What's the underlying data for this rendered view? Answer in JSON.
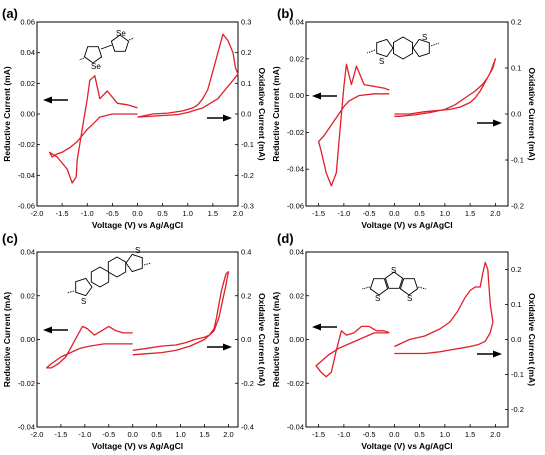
{
  "curve_color": "#e0202a",
  "panels": [
    {
      "id": "a",
      "label": "(a)",
      "xlabel": "Voltage (V) vs Ag/AgCl",
      "ylabel_left": "Reductive Current (mA)",
      "ylabel_right": "Oxidative Current (mA)",
      "molecule_atoms": [
        "Se",
        "Se"
      ],
      "chart_data": {
        "type": "line",
        "xlim": [
          -2.0,
          2.0
        ],
        "left_ylim": [
          -0.06,
          0.06
        ],
        "right_ylim": [
          -0.3,
          0.3
        ],
        "x_ticks": [
          "-2.0",
          "-1.5",
          "-1.0",
          "-0.5",
          "0.0",
          "0.5",
          "1.0",
          "1.5",
          "2.0"
        ],
        "left_ticks": [
          "-0.06",
          "-0.04",
          "-0.02",
          "0.00",
          "0.02",
          "0.04",
          "0.06"
        ],
        "right_ticks": [
          "-0.3",
          "-0.2",
          "-0.1",
          "0.0",
          "0.1",
          "0.2",
          "0.3"
        ],
        "reductive_x": [
          0.0,
          -0.2,
          -0.5,
          -0.75,
          -0.9,
          -1.0,
          -1.1,
          -1.2,
          -1.35,
          -1.5,
          -1.6,
          -1.7,
          -1.75,
          -1.6,
          -1.4,
          -1.3,
          -1.22,
          -1.2,
          -1.1,
          -1.0,
          -0.95,
          -0.85,
          -0.75,
          -0.6,
          -0.4,
          -0.2,
          0.0
        ],
        "reductive_y": [
          0.0,
          0.0,
          0.0,
          -0.002,
          -0.007,
          -0.01,
          -0.014,
          -0.018,
          -0.022,
          -0.025,
          -0.026,
          -0.028,
          -0.025,
          -0.028,
          -0.036,
          -0.045,
          -0.041,
          -0.03,
          -0.01,
          0.01,
          0.022,
          0.025,
          0.01,
          0.015,
          0.007,
          0.006,
          0.004
        ],
        "oxidative_x": [
          0.0,
          0.3,
          0.6,
          0.9,
          1.1,
          1.2,
          1.3,
          1.4,
          1.5,
          1.6,
          1.7,
          1.8,
          1.9,
          1.95,
          2.0,
          1.95,
          1.9,
          1.8,
          1.7,
          1.6,
          1.5,
          1.4,
          1.3,
          1.2,
          1.1,
          1.0,
          0.8,
          0.5,
          0.2,
          0.0
        ],
        "oxidative_y": [
          -0.01,
          0.0,
          0.003,
          0.01,
          0.02,
          0.03,
          0.05,
          0.08,
          0.14,
          0.2,
          0.26,
          0.24,
          0.2,
          0.15,
          0.13,
          0.12,
          0.11,
          0.09,
          0.07,
          0.05,
          0.04,
          0.03,
          0.02,
          0.015,
          0.01,
          0.005,
          -0.002,
          -0.005,
          -0.008,
          -0.01
        ]
      }
    },
    {
      "id": "b",
      "label": "(b)",
      "xlabel": "Voltage (V) vs Ag/AgCl",
      "ylabel_left": "Reductive Current (mA)",
      "ylabel_right": "Oxidative Current (mA)",
      "molecule_atoms": [
        "S",
        "S"
      ],
      "chart_data": {
        "type": "line",
        "xlim": [
          -1.75,
          2.25
        ],
        "left_ylim": [
          -0.06,
          0.04
        ],
        "right_ylim": [
          -0.2,
          0.2
        ],
        "x_ticks": [
          "-1.5",
          "-1.0",
          "-0.5",
          "0.0",
          "0.5",
          "1.0",
          "1.5",
          "2.0"
        ],
        "left_ticks": [
          "-0.06",
          "-0.04",
          "-0.02",
          "0.00",
          "0.02",
          "0.04"
        ],
        "right_ticks": [
          "-0.2",
          "-0.1",
          "0.0",
          "0.1",
          "0.2"
        ],
        "reductive_x": [
          -0.1,
          -0.4,
          -0.7,
          -0.9,
          -1.0,
          -1.1,
          -1.25,
          -1.4,
          -1.5,
          -1.45,
          -1.35,
          -1.25,
          -1.15,
          -1.08,
          -1.0,
          -0.95,
          -0.85,
          -0.75,
          -0.6,
          -0.4,
          -0.2,
          -0.1
        ],
        "reductive_y": [
          0.001,
          0.001,
          0.0,
          -0.003,
          -0.006,
          -0.01,
          -0.016,
          -0.022,
          -0.025,
          -0.03,
          -0.042,
          -0.049,
          -0.042,
          -0.02,
          0.005,
          0.017,
          0.006,
          0.016,
          0.006,
          0.005,
          0.004,
          0.003
        ],
        "oxidative_x": [
          0.0,
          0.3,
          0.6,
          0.9,
          1.1,
          1.3,
          1.5,
          1.6,
          1.7,
          1.8,
          1.9,
          1.95,
          2.0,
          1.95,
          1.85,
          1.75,
          1.6,
          1.4,
          1.2,
          1.0,
          0.7,
          0.4,
          0.1,
          0.0
        ],
        "oxidative_y": [
          0.0,
          0.0,
          0.005,
          0.008,
          0.01,
          0.015,
          0.025,
          0.035,
          0.05,
          0.07,
          0.09,
          0.105,
          0.12,
          0.1,
          0.08,
          0.065,
          0.05,
          0.035,
          0.02,
          0.01,
          0.003,
          -0.002,
          -0.005,
          -0.005
        ]
      }
    },
    {
      "id": "c",
      "label": "(c)",
      "xlabel": "Voltage (V) vs Ag/AgCl",
      "ylabel_left": "Reductive Current (mA)",
      "ylabel_right": "Oxidative Current (mA)",
      "molecule_atoms": [
        "S",
        "S"
      ],
      "chart_data": {
        "type": "line",
        "xlim": [
          -2.0,
          2.2
        ],
        "left_ylim": [
          -0.04,
          0.04
        ],
        "right_ylim": [
          -0.4,
          0.4
        ],
        "x_ticks": [
          "-2.0",
          "-1.5",
          "-1.0",
          "-0.5",
          "0.0",
          "0.5",
          "1.0",
          "1.5",
          "2.0"
        ],
        "left_ticks": [
          "-0.04",
          "-0.02",
          "0.00",
          "0.02",
          "0.04"
        ],
        "right_ticks": [
          "-0.4",
          "-0.2",
          "0.0",
          "0.2",
          "0.4"
        ],
        "reductive_x": [
          0.0,
          -0.3,
          -0.6,
          -0.9,
          -1.1,
          -1.3,
          -1.5,
          -1.7,
          -1.8,
          -1.7,
          -1.55,
          -1.4,
          -1.3,
          -1.15,
          -1.05,
          -0.95,
          -0.8,
          -0.65,
          -0.5,
          -0.35,
          -0.2,
          0.0
        ],
        "reductive_y": [
          -0.002,
          -0.002,
          -0.002,
          -0.003,
          -0.004,
          -0.006,
          -0.008,
          -0.011,
          -0.013,
          -0.013,
          -0.011,
          -0.008,
          -0.004,
          0.002,
          0.006,
          0.005,
          0.002,
          0.004,
          0.006,
          0.004,
          0.003,
          0.003
        ],
        "oxidative_x": [
          0.0,
          0.3,
          0.6,
          0.9,
          1.1,
          1.3,
          1.5,
          1.6,
          1.7,
          1.75,
          1.8,
          1.85,
          1.9,
          1.95,
          2.0,
          1.95,
          1.9,
          1.85,
          1.8,
          1.7,
          1.5,
          1.2,
          0.9,
          0.6,
          0.3,
          0.0
        ],
        "oxidative_y": [
          -0.05,
          -0.04,
          -0.03,
          -0.025,
          -0.015,
          0.0,
          0.01,
          0.02,
          0.05,
          0.1,
          0.16,
          0.22,
          0.26,
          0.3,
          0.31,
          0.25,
          0.2,
          0.15,
          0.1,
          0.04,
          0.0,
          -0.03,
          -0.05,
          -0.06,
          -0.065,
          -0.07
        ]
      }
    },
    {
      "id": "d",
      "label": "(d)",
      "xlabel": "Voltage (V) vs Ag/AgCl",
      "ylabel_left": "Reductive Current (mA)",
      "ylabel_right": "Oxidative Current (mA)",
      "molecule_atoms": [
        "S",
        "S",
        "S"
      ],
      "chart_data": {
        "type": "line",
        "xlim": [
          -1.75,
          2.25
        ],
        "left_ylim": [
          -0.04,
          0.04
        ],
        "right_ylim": [
          -0.25,
          0.25
        ],
        "x_ticks": [
          "-1.5",
          "-1.0",
          "-0.5",
          "0.0",
          "0.5",
          "1.0",
          "1.5",
          "2.0"
        ],
        "left_ticks": [
          "-0.04",
          "-0.02",
          "0.00",
          "0.02",
          "0.04"
        ],
        "right_ticks": [
          "-0.2",
          "-0.1",
          "0.0",
          "0.1",
          "0.2"
        ],
        "reductive_x": [
          -0.1,
          -0.4,
          -0.7,
          -0.9,
          -1.1,
          -1.3,
          -1.45,
          -1.55,
          -1.45,
          -1.35,
          -1.25,
          -1.15,
          -1.05,
          -0.95,
          -0.8,
          -0.65,
          -0.5,
          -0.35,
          -0.2,
          -0.1
        ],
        "reductive_y": [
          0.003,
          0.003,
          0.0,
          -0.002,
          -0.004,
          -0.007,
          -0.01,
          -0.012,
          -0.015,
          -0.017,
          -0.015,
          -0.005,
          0.004,
          0.002,
          0.003,
          0.006,
          0.006,
          0.004,
          0.004,
          0.003
        ],
        "oxidative_x": [
          0.0,
          0.3,
          0.6,
          0.9,
          1.1,
          1.25,
          1.4,
          1.5,
          1.6,
          1.7,
          1.75,
          1.8,
          1.85,
          1.9,
          1.95,
          1.9,
          1.8,
          1.65,
          1.5,
          1.3,
          1.1,
          0.9,
          0.6,
          0.3,
          0.0
        ],
        "oxidative_y": [
          -0.02,
          0.0,
          0.01,
          0.03,
          0.05,
          0.08,
          0.12,
          0.14,
          0.15,
          0.15,
          0.19,
          0.22,
          0.2,
          0.1,
          0.05,
          0.02,
          -0.005,
          -0.015,
          -0.02,
          -0.025,
          -0.03,
          -0.035,
          -0.04,
          -0.04,
          -0.04
        ]
      }
    }
  ]
}
